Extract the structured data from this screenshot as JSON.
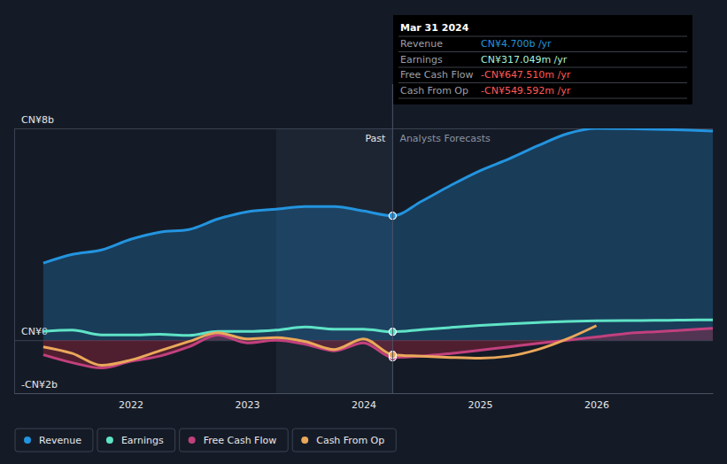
{
  "chart_data": {
    "type": "line",
    "x": [
      2021.25,
      2021.5,
      2021.75,
      2022,
      2022.25,
      2022.5,
      2022.75,
      2023,
      2023.25,
      2023.5,
      2023.75,
      2024,
      2024.25,
      2024.5,
      2024.75,
      2025,
      2025.25,
      2025.5,
      2025.75,
      2026,
      2026.25,
      2026.5,
      2026.75,
      2027
    ],
    "xlim": [
      2021,
      2027
    ],
    "xticks": [
      2022,
      2023,
      2024,
      2025,
      2026
    ],
    "ylim": [
      -2,
      8
    ],
    "yticks": [
      {
        "value": -2,
        "label": "-CN¥2b"
      },
      {
        "value": 0,
        "label": "CN¥0"
      },
      {
        "value": 8,
        "label": "CN¥8b"
      }
    ],
    "grid": true,
    "series": [
      {
        "name": "Revenue",
        "color": "#2394df",
        "type": "area",
        "values": [
          2.91,
          3.24,
          3.41,
          3.81,
          4.08,
          4.18,
          4.58,
          4.85,
          4.95,
          5.05,
          5.05,
          4.88,
          4.7,
          5.25,
          5.85,
          6.4,
          6.85,
          7.35,
          7.8,
          8.0,
          7.99,
          7.97,
          7.94,
          7.9
        ]
      },
      {
        "name": "Earnings",
        "color": "#5fe3c6",
        "type": "line",
        "values": [
          0.33,
          0.38,
          0.2,
          0.2,
          0.22,
          0.18,
          0.33,
          0.33,
          0.38,
          0.5,
          0.42,
          0.42,
          0.317,
          0.4,
          0.48,
          0.56,
          0.62,
          0.67,
          0.71,
          0.73,
          0.74,
          0.75,
          0.76,
          0.77
        ]
      },
      {
        "name": "Free Cash Flow",
        "color": "#c2407e",
        "type": "area",
        "values": [
          -0.55,
          -0.85,
          -1.05,
          -0.8,
          -0.6,
          -0.25,
          0.2,
          -0.1,
          0,
          -0.15,
          -0.4,
          -0.1,
          -0.6475,
          -0.6,
          -0.5,
          -0.38,
          -0.25,
          -0.12,
          0.0,
          0.12,
          0.25,
          0.32,
          0.38,
          0.45
        ]
      },
      {
        "name": "Cash From Op",
        "color": "#eaa85a",
        "type": "line",
        "values": [
          -0.25,
          -0.5,
          -0.95,
          -0.75,
          -0.4,
          -0.05,
          0.28,
          0.05,
          0.1,
          -0.05,
          -0.35,
          0.05,
          -0.5496,
          -0.6,
          -0.65,
          -0.68,
          -0.6,
          -0.35,
          0.05,
          0.55,
          null,
          null,
          null,
          null
        ]
      }
    ],
    "highlight": [
      2023.25,
      2024.25
    ],
    "past_label": "Past",
    "forecast_label": "Analysts Forecasts",
    "tooltip": {
      "date": "Mar 31 2024",
      "rows": [
        {
          "label": "Revenue",
          "value": "CN¥4.700b /yr"
        },
        {
          "label": "Earnings",
          "value": "CN¥317.049m /yr"
        },
        {
          "label": "Free Cash Flow",
          "value": "-CN¥647.510m /yr"
        },
        {
          "label": "Cash From Op",
          "value": "-CN¥549.592m /yr"
        }
      ]
    },
    "legend": "bottom-left"
  }
}
